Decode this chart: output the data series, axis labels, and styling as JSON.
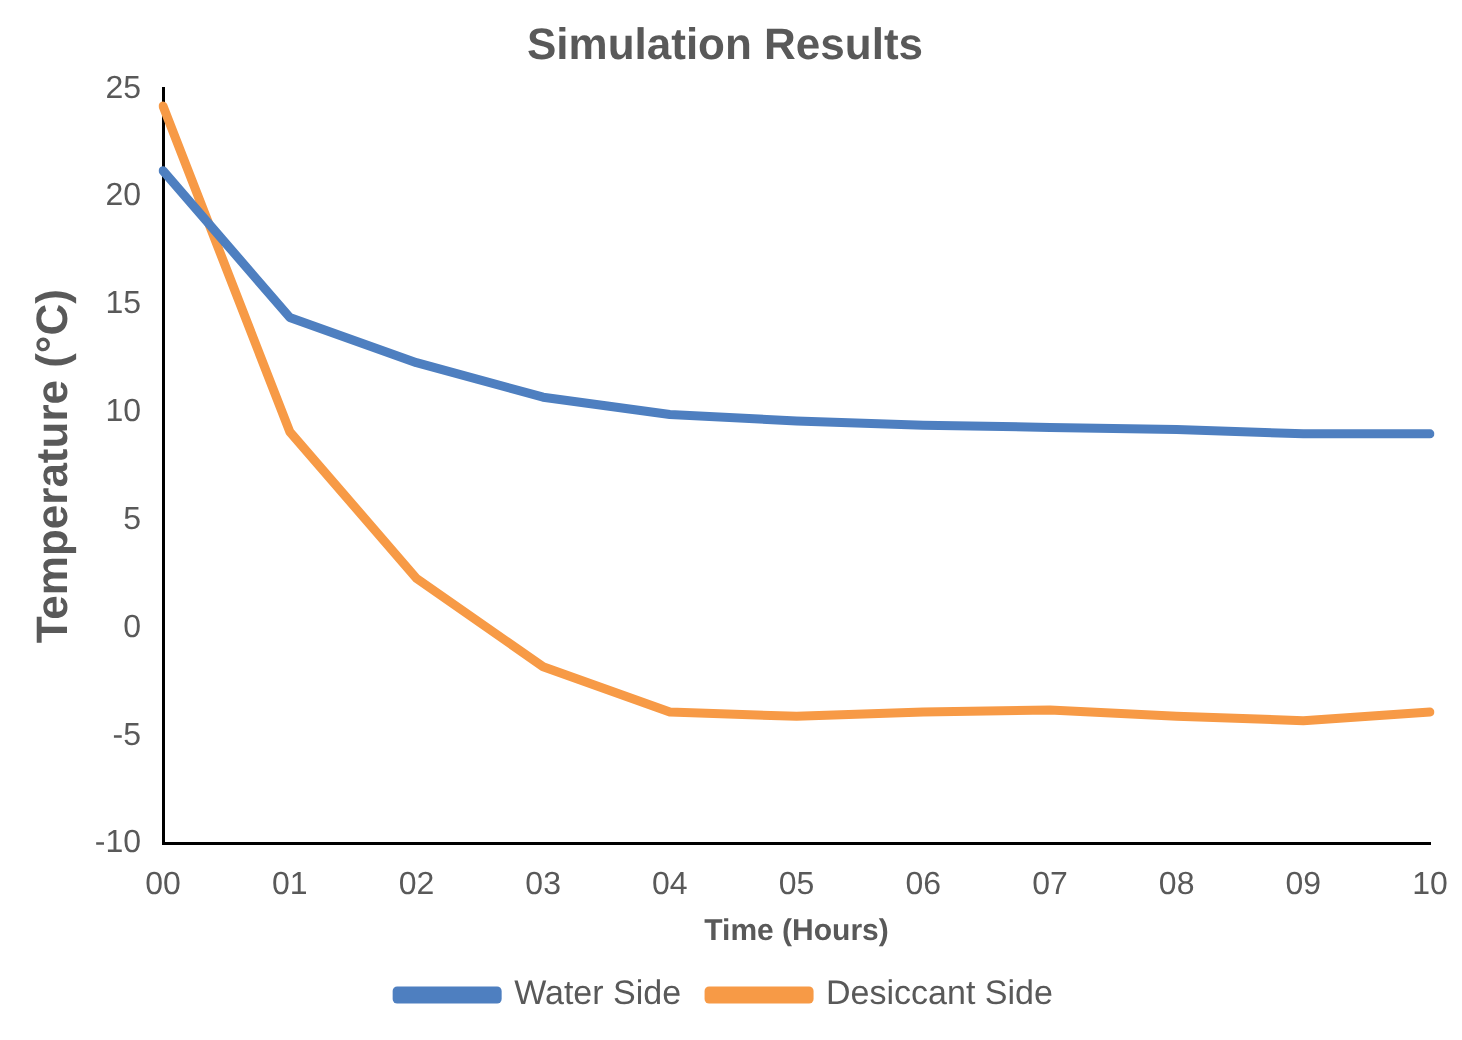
{
  "chart_data": {
    "type": "line",
    "title": "Simulation Results",
    "xlabel": "Time (Hours)",
    "ylabel": "Temperature (°C)",
    "categories": [
      "00",
      "01",
      "02",
      "03",
      "04",
      "05",
      "06",
      "07",
      "08",
      "09",
      "10"
    ],
    "series": [
      {
        "name": "Water Side",
        "color": "#4e7fc0",
        "values": [
          21.2,
          14.4,
          12.3,
          10.7,
          9.9,
          9.6,
          9.4,
          9.3,
          9.2,
          9.0,
          9.0
        ]
      },
      {
        "name": "Desiccant Side",
        "color": "#f79a46",
        "values": [
          24.2,
          9.1,
          2.3,
          -1.8,
          -3.9,
          -4.1,
          -3.9,
          -3.8,
          -4.1,
          -4.3,
          -3.9
        ]
      }
    ],
    "ylim": [
      -10,
      25
    ],
    "yticks": [
      -10,
      -5,
      0,
      5,
      10,
      15,
      20,
      25
    ],
    "grid": false,
    "legend": "bottom",
    "marker": "none",
    "line_style": "solid"
  }
}
